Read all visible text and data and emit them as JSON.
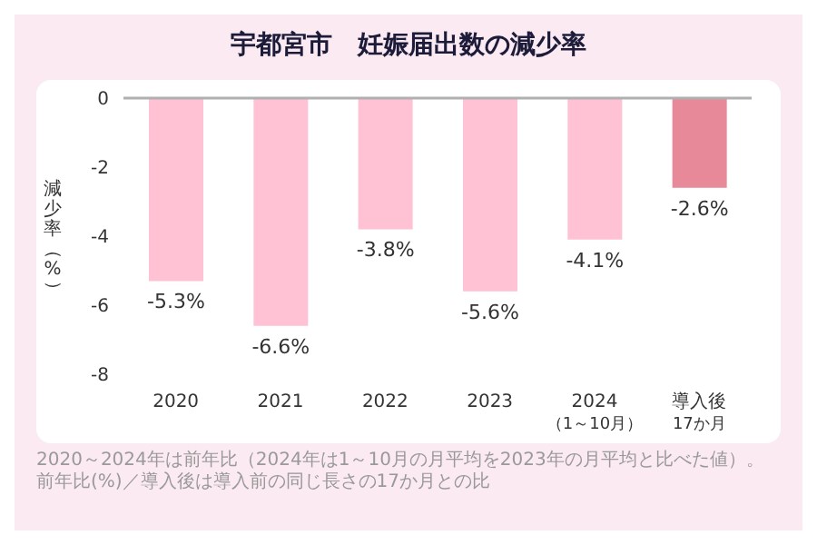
{
  "chart_data": {
    "type": "bar",
    "title": "宇都宮市　妊娠届出数の減少率",
    "ylabel": "減少率（%）",
    "categories": [
      "2020",
      "2021",
      "2022",
      "2023",
      "2024\n（1～10月）",
      "導入後\n17か月"
    ],
    "values": [
      -5.3,
      -6.6,
      -3.8,
      -5.6,
      -4.1,
      -2.6
    ],
    "value_labels": [
      "-5.3%",
      "-6.6%",
      "-3.8%",
      "-5.6%",
      "-4.1%",
      "-2.6%"
    ],
    "colors": [
      "#ffc1d4",
      "#ffc1d4",
      "#ffc1d4",
      "#ffc1d4",
      "#ffc1d4",
      "#e8899a"
    ],
    "ylim": [
      -8,
      0
    ],
    "yticks": [
      0,
      -2,
      -4,
      -6,
      -8
    ],
    "grid": false,
    "ref_lines": [
      {
        "axis": "y",
        "value": 0,
        "color": "#b0b0b0"
      }
    ],
    "annotations": [
      "2020～2024年は前年比（2024年は1～10月の月平均を2023年の月平均と比べた値）。前年比(%)／導入後は導入前の同じ長さの17か月との比"
    ]
  }
}
